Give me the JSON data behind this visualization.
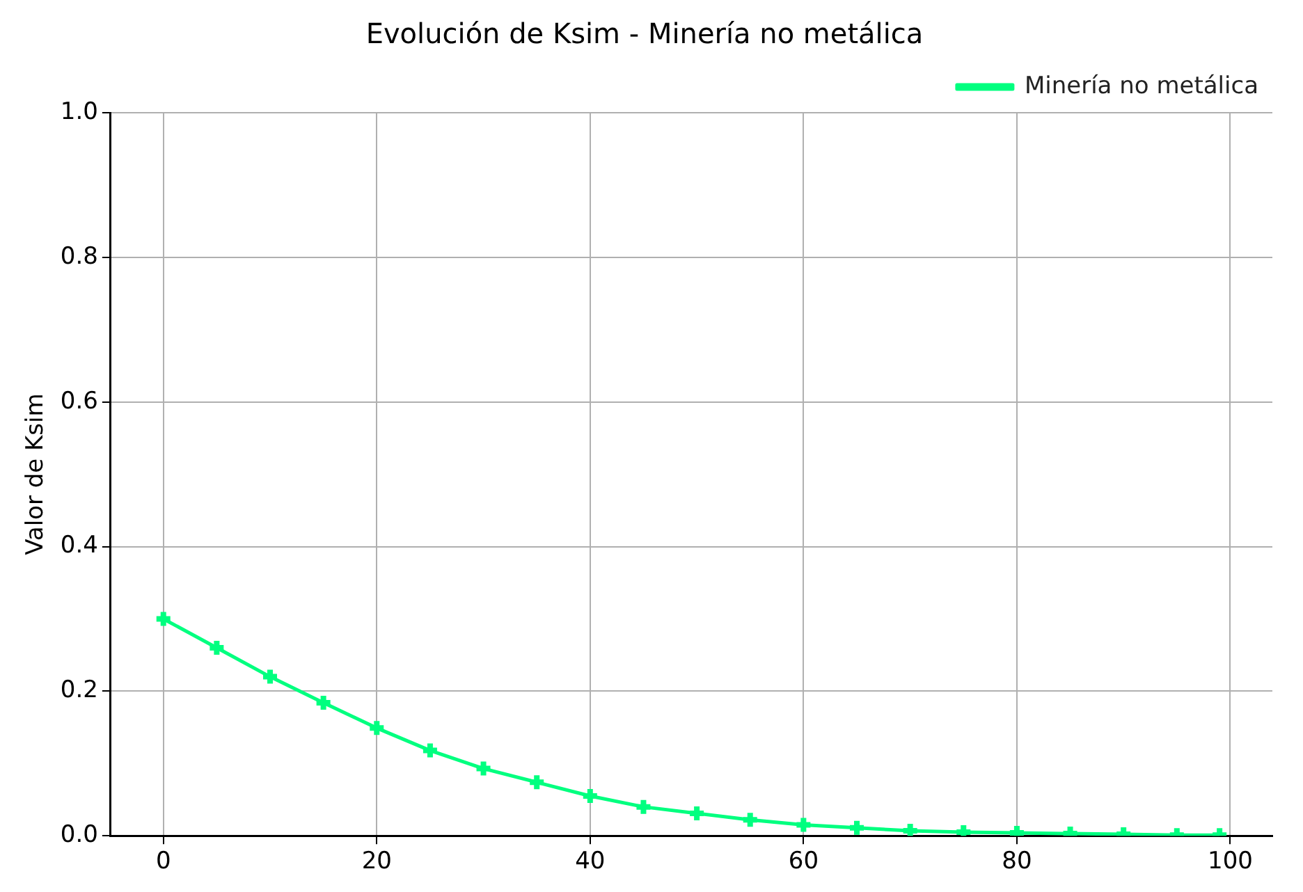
{
  "chart_data": {
    "type": "line",
    "title": "Evolución de Ksim - Minería no metálica",
    "ylabel": "Valor de Ksim",
    "x": [
      0,
      5,
      10,
      15,
      20,
      25,
      30,
      35,
      40,
      45,
      50,
      55,
      60,
      65,
      70,
      75,
      80,
      85,
      90,
      95,
      99
    ],
    "series": [
      {
        "name": "Minería no metálica",
        "color": "#00ff7f",
        "values": [
          0.3,
          0.26,
          0.22,
          0.184,
          0.149,
          0.118,
          0.093,
          0.074,
          0.055,
          0.04,
          0.031,
          0.022,
          0.015,
          0.011,
          0.007,
          0.005,
          0.004,
          0.003,
          0.002,
          0.001,
          0.001
        ]
      }
    ],
    "xlim": [
      -4.95,
      103.95
    ],
    "xticks": [
      0,
      20,
      40,
      60,
      80,
      100
    ],
    "ylim": [
      0,
      1
    ],
    "yticks": [
      {
        "value": 0,
        "label": "0.0"
      },
      0.2,
      0.4,
      0.6,
      0.8,
      {
        "value": 1,
        "label": "1.0"
      }
    ],
    "grid": true,
    "legend": "top right",
    "marker": "cross",
    "line_style": "solid"
  }
}
